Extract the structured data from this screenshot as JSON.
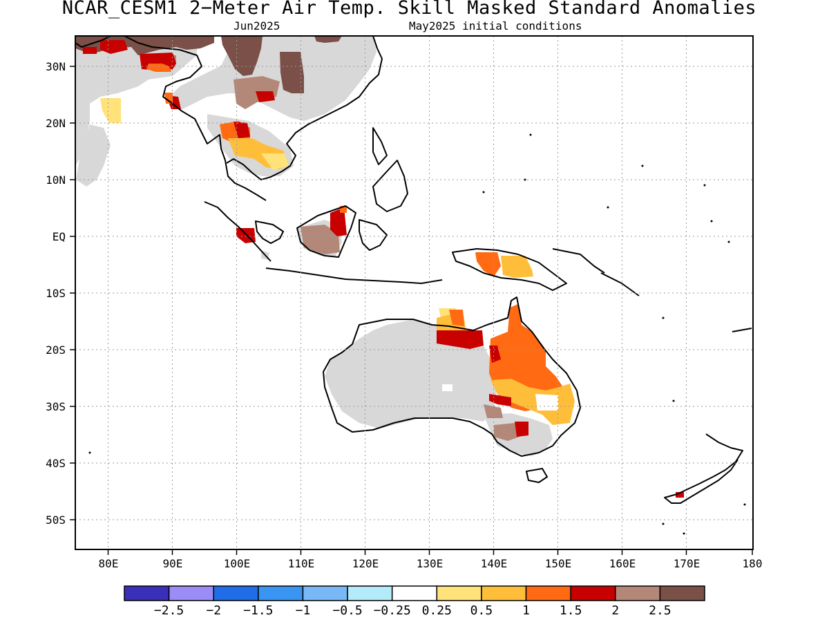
{
  "title": "NCAR_CESM1 2−Meter Air Temp. Skill Masked Standard Anomalies",
  "subtitle_left": "Jun2025",
  "subtitle_right": "May2025 initial conditions",
  "lat_ticks": [
    "30N",
    "20N",
    "10N",
    "EQ",
    "10S",
    "20S",
    "30S",
    "40S",
    "50S"
  ],
  "lon_ticks": [
    "80E",
    "90E",
    "100E",
    "110E",
    "120E",
    "130E",
    "140E",
    "150E",
    "160E",
    "170E",
    "180"
  ],
  "colorbar": {
    "colors": [
      "#3a2fb8",
      "#9c8cf5",
      "#1f6ee8",
      "#3a95f2",
      "#78b8f6",
      "#b3ecf8",
      "#ffffff",
      "#ffe27a",
      "#ffbe3a",
      "#ff6a12",
      "#c80000",
      "#b48878",
      "#7a5048"
    ],
    "labels": [
      "−2.5",
      "−2",
      "−1.5",
      "−1",
      "−0.5",
      "−0.25",
      "0.25",
      "0.5",
      "1",
      "1.5",
      "2",
      "2.5"
    ]
  },
  "legend_colors": {
    "no_skill": "#d8d8d8"
  }
}
